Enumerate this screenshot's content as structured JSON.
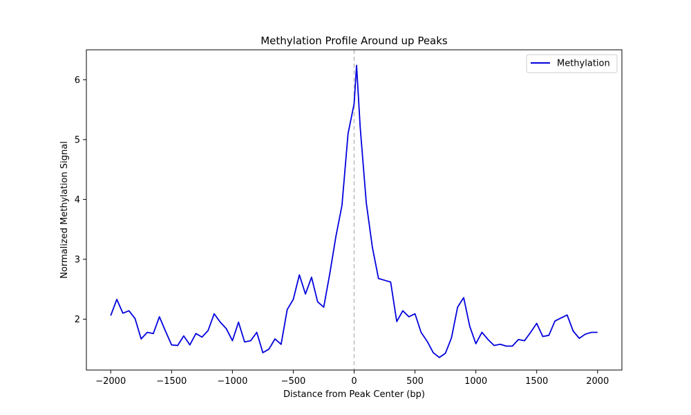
{
  "chart_data": {
    "type": "line",
    "title": "Methylation Profile Around up Peaks",
    "xlabel": "Distance from Peak Center (bp)",
    "ylabel": "Normalized Methylation Signal",
    "xlim": [
      -2200,
      2200
    ],
    "ylim": [
      1.15,
      6.5
    ],
    "xticks": [
      -2000,
      -1500,
      -1000,
      -500,
      0,
      500,
      1000,
      1500,
      2000
    ],
    "xtick_labels": [
      "−2000",
      "−1500",
      "−1000",
      "−500",
      "0",
      "500",
      "1000",
      "1500",
      "2000"
    ],
    "yticks": [
      2,
      3,
      4,
      5,
      6
    ],
    "ytick_labels": [
      "2",
      "3",
      "4",
      "5",
      "6"
    ],
    "grid": false,
    "legend_position": "top-right",
    "reference_line": {
      "x": 0,
      "style": "dashed",
      "color": "#bbbbbb"
    },
    "series": [
      {
        "name": "Methylation",
        "color": "#0000dd",
        "x": [
          -2000,
          -1950,
          -1900,
          -1850,
          -1800,
          -1750,
          -1700,
          -1650,
          -1600,
          -1550,
          -1500,
          -1450,
          -1400,
          -1350,
          -1300,
          -1250,
          -1200,
          -1150,
          -1100,
          -1050,
          -1000,
          -950,
          -900,
          -850,
          -800,
          -750,
          -700,
          -650,
          -600,
          -550,
          -500,
          -450,
          -400,
          -350,
          -300,
          -250,
          -200,
          -150,
          -100,
          -50,
          0,
          20,
          50,
          100,
          150,
          200,
          250,
          300,
          350,
          400,
          450,
          500,
          550,
          600,
          650,
          700,
          750,
          800,
          850,
          900,
          950,
          1000,
          1050,
          1100,
          1150,
          1200,
          1250,
          1300,
          1350,
          1400,
          1450,
          1500,
          1550,
          1600,
          1650,
          1700,
          1750,
          1800,
          1850,
          1900,
          1950,
          2000
        ],
        "values": [
          2.06,
          2.33,
          2.1,
          2.14,
          2.01,
          1.67,
          1.78,
          1.76,
          2.04,
          1.8,
          1.57,
          1.56,
          1.72,
          1.57,
          1.76,
          1.7,
          1.81,
          2.09,
          1.95,
          1.84,
          1.64,
          1.95,
          1.62,
          1.64,
          1.78,
          1.44,
          1.5,
          1.67,
          1.58,
          2.16,
          2.33,
          2.74,
          2.42,
          2.7,
          2.29,
          2.2,
          2.76,
          3.38,
          3.9,
          5.1,
          5.6,
          6.24,
          5.2,
          3.94,
          3.2,
          2.68,
          2.65,
          2.62,
          1.96,
          2.14,
          2.04,
          2.09,
          1.78,
          1.63,
          1.44,
          1.36,
          1.43,
          1.69,
          2.2,
          2.36,
          1.88,
          1.59,
          1.78,
          1.66,
          1.56,
          1.58,
          1.55,
          1.55,
          1.66,
          1.64,
          1.78,
          1.93,
          1.71,
          1.73,
          1.97,
          2.02,
          2.07,
          1.8,
          1.68,
          1.75,
          1.78,
          1.78
        ]
      }
    ]
  }
}
